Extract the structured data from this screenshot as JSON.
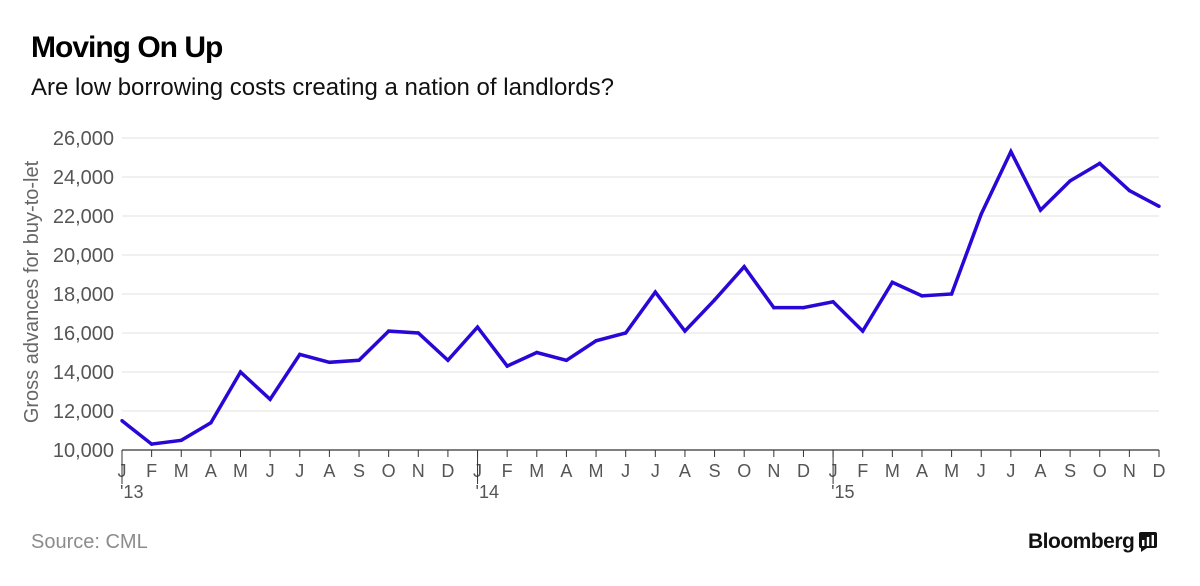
{
  "header": {
    "title": "Moving On Up",
    "subtitle": "Are low borrowing costs creating a nation of landlords?"
  },
  "footer": {
    "source": "Source: CML",
    "brand": "Bloomberg"
  },
  "colors": {
    "line": "#2a07d6",
    "grid": "#e2e2e2",
    "axis": "#333333",
    "source_text": "#8c8c8c"
  },
  "icons": {
    "brand": "bloomberg-chart-icon"
  },
  "chart_data": {
    "type": "line",
    "title": "Moving On Up",
    "subtitle": "Are low borrowing costs creating a nation of landlords?",
    "ylabel": "Gross advances for buy-to-let",
    "xlabel": "",
    "ylim": [
      10000,
      26000
    ],
    "yticks": [
      10000,
      12000,
      14000,
      16000,
      18000,
      20000,
      22000,
      24000,
      26000
    ],
    "ytick_labels": [
      "10,000",
      "12,000",
      "14,000",
      "16,000",
      "18,000",
      "20,000",
      "22,000",
      "24,000",
      "26,000"
    ],
    "grid": true,
    "legend": "none",
    "x": [
      "J",
      "F",
      "M",
      "A",
      "M",
      "J",
      "J",
      "A",
      "S",
      "O",
      "N",
      "D",
      "J",
      "F",
      "M",
      "A",
      "M",
      "J",
      "J",
      "A",
      "S",
      "O",
      "N",
      "D",
      "J",
      "F",
      "M",
      "A",
      "M",
      "J",
      "J",
      "A",
      "S",
      "O",
      "N",
      "D"
    ],
    "year_labels": [
      {
        "index": 0,
        "label": "'13"
      },
      {
        "index": 12,
        "label": "'14"
      },
      {
        "index": 24,
        "label": "'15"
      }
    ],
    "series": [
      {
        "values": [
          11500,
          10300,
          10500,
          11400,
          14000,
          12600,
          14900,
          14500,
          14600,
          16100,
          16000,
          14600,
          16300,
          14300,
          15000,
          14600,
          15600,
          16000,
          18100,
          16100,
          17700,
          19400,
          17300,
          17300,
          17600,
          16100,
          18600,
          17900,
          18000,
          22100,
          25300,
          22300,
          23800,
          24700,
          23300,
          22500
        ]
      }
    ]
  }
}
